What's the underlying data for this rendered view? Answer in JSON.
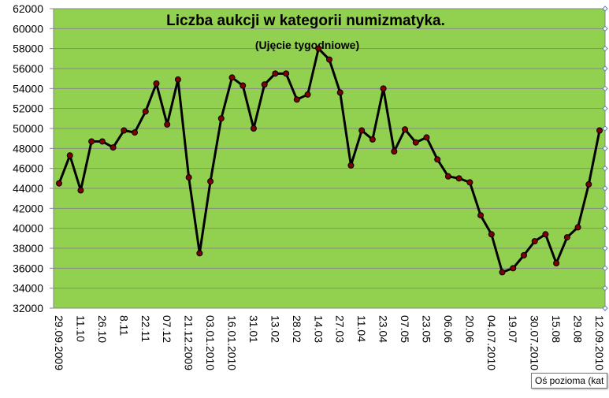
{
  "chart_data": {
    "type": "line",
    "title": "Liczba aukcji w kategorii numizmatyka.",
    "subtitle": "(Ujęcie tygodniowe)",
    "categories": [
      "29.09.2009",
      null,
      "11.10",
      null,
      "26.10",
      null,
      "8.11",
      null,
      "22.11",
      null,
      "07.12",
      null,
      "21.12.2009",
      null,
      "03.01.2010",
      null,
      "16.01.2010",
      null,
      "31.01",
      null,
      "13.02",
      null,
      "28.02",
      null,
      "14.03",
      null,
      "27.03",
      null,
      "11.04",
      null,
      "23.04",
      null,
      "07.05",
      null,
      "23.05",
      null,
      "06.06",
      null,
      "20.06",
      null,
      "04.07.2010",
      null,
      "19.07",
      null,
      "30.07.2010",
      null,
      "15.08",
      null,
      "29.08",
      null,
      "12.09.2010"
    ],
    "series": [
      {
        "name": "Liczba aukcji",
        "color": "#000000",
        "marker_color": "#7f0000",
        "values": [
          44500,
          47300,
          43800,
          48700,
          48700,
          48100,
          49800,
          49600,
          51700,
          54500,
          50400,
          54900,
          45100,
          37500,
          44700,
          51000,
          55100,
          54300,
          50000,
          54400,
          55500,
          55500,
          52900,
          53400,
          58000,
          56900,
          53600,
          46300,
          49800,
          48900,
          54000,
          47700,
          49900,
          48600,
          49100,
          46900,
          45200,
          45000,
          44600,
          41300,
          39400,
          35600,
          36000,
          37300,
          38700,
          39400,
          36500,
          39100,
          40100,
          44400,
          49800
        ]
      }
    ],
    "ylim": [
      32000,
      62000
    ],
    "yticks": [
      32000,
      34000,
      36000,
      38000,
      40000,
      42000,
      44000,
      46000,
      48000,
      50000,
      52000,
      54000,
      56000,
      58000,
      60000,
      62000
    ],
    "grid": true,
    "plot_background": "#92d050",
    "tooltip": "Oś  pozioma  (kat"
  }
}
